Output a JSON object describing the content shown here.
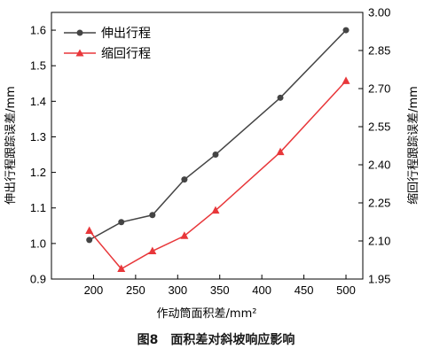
{
  "caption": "图8　面积差对斜坡响应影响",
  "chart_data": {
    "type": "line",
    "xlabel": "作动筒面积差/mm²",
    "ylabel_left": "伸出行程跟踪误差/mm",
    "ylabel_right": "缩回行程跟踪误差/mm",
    "xlim": [
      150,
      520
    ],
    "ylim_left": [
      0.9,
      1.65
    ],
    "ylim_right": [
      1.95,
      3.0
    ],
    "xticks": [
      "200",
      "250",
      "300",
      "350",
      "400",
      "450",
      "500"
    ],
    "yticks_left": [
      "0.9",
      "1.0",
      "1.1",
      "1.2",
      "1.3",
      "1.4",
      "1.5",
      "1.6"
    ],
    "yticks_right": [
      "1.95",
      "2.10",
      "2.25",
      "2.40",
      "2.55",
      "2.70",
      "2.85",
      "3.00"
    ],
    "legend_position": "top-left",
    "series": [
      {
        "name": "伸出行程",
        "axis": "left",
        "color": "#444444",
        "marker": "circle",
        "x": [
          195,
          233,
          270,
          308,
          345,
          422,
          500
        ],
        "y": [
          1.01,
          1.06,
          1.08,
          1.18,
          1.25,
          1.41,
          1.6
        ]
      },
      {
        "name": "缩回行程",
        "axis": "right",
        "color": "#e8373a",
        "marker": "triangle",
        "x": [
          195,
          233,
          270,
          308,
          345,
          422,
          500
        ],
        "y": [
          2.14,
          1.99,
          2.06,
          2.12,
          2.22,
          2.45,
          2.73
        ]
      }
    ]
  }
}
